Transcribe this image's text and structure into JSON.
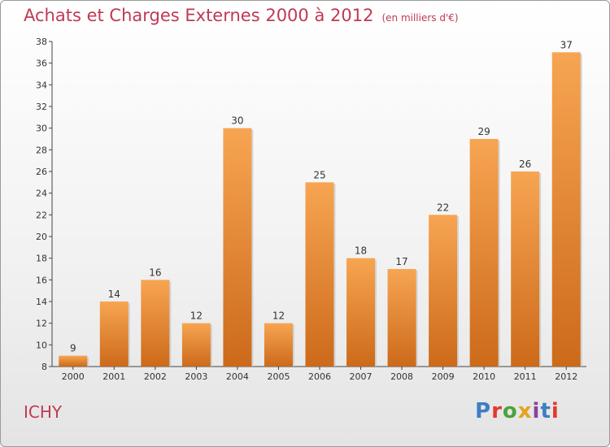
{
  "header": {
    "title": "Achats et Charges Externes 2000 à 2012",
    "subtitle": "(en milliers d'€)"
  },
  "footer": {
    "place": "ICHY",
    "brand": "Proxiti",
    "brand_colors": [
      "#3d7fc4",
      "#e23a2e",
      "#4aa33c",
      "#e6a21a",
      "#8b3fa0",
      "#3d7fc4",
      "#e23a2e"
    ]
  },
  "chart_data": {
    "type": "bar",
    "categories": [
      "2000",
      "2001",
      "2002",
      "2003",
      "2004",
      "2005",
      "2006",
      "2007",
      "2008",
      "2009",
      "2010",
      "2011",
      "2012"
    ],
    "values": [
      9,
      14,
      16,
      12,
      30,
      12,
      25,
      18,
      17,
      22,
      29,
      26,
      37
    ],
    "title": "Achats et Charges Externes 2000 à 2012",
    "subtitle": "(en milliers d'€)",
    "ylim": [
      8,
      38
    ],
    "yticks": [
      8,
      10,
      12,
      14,
      16,
      18,
      20,
      22,
      24,
      26,
      28,
      30,
      32,
      34,
      36,
      38
    ],
    "grid": false,
    "bar_color_top": "#f7a552",
    "bar_color_bottom": "#cc6a1a"
  }
}
